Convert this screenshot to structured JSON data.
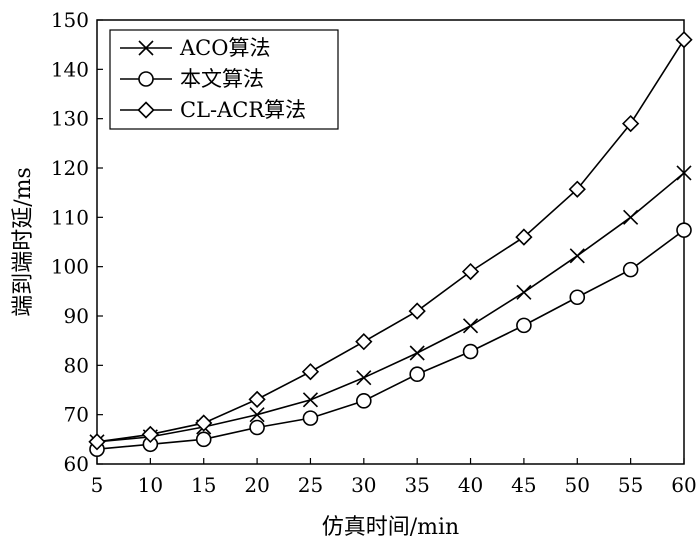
{
  "chart_data": {
    "type": "line",
    "xlabel": "仿真时间/min",
    "ylabel": "端到端时延/ms",
    "x": [
      5,
      10,
      15,
      20,
      25,
      30,
      35,
      40,
      45,
      50,
      55,
      60
    ],
    "xlim": [
      5,
      60
    ],
    "ylim": [
      60,
      150
    ],
    "yticks": [
      60,
      70,
      80,
      90,
      100,
      110,
      120,
      130,
      140,
      150
    ],
    "grid": false,
    "legend_position": "top-left",
    "series": [
      {
        "name": "ACO算法",
        "marker": "x",
        "values": [
          64.5,
          65.5,
          67.5,
          70.0,
          73.0,
          77.5,
          82.5,
          88.0,
          94.8,
          102.2,
          110.0,
          119.0
        ]
      },
      {
        "name": "本文算法",
        "marker": "circle",
        "values": [
          63.0,
          64.0,
          65.0,
          67.4,
          69.3,
          72.8,
          78.2,
          82.8,
          88.1,
          93.8,
          99.4,
          107.4
        ]
      },
      {
        "name": "CL-ACR算法",
        "marker": "diamond",
        "values": [
          64.5,
          66.0,
          68.3,
          73.1,
          78.7,
          84.8,
          91.0,
          99.0,
          106.0,
          115.7,
          129.0,
          146.0
        ]
      }
    ]
  }
}
